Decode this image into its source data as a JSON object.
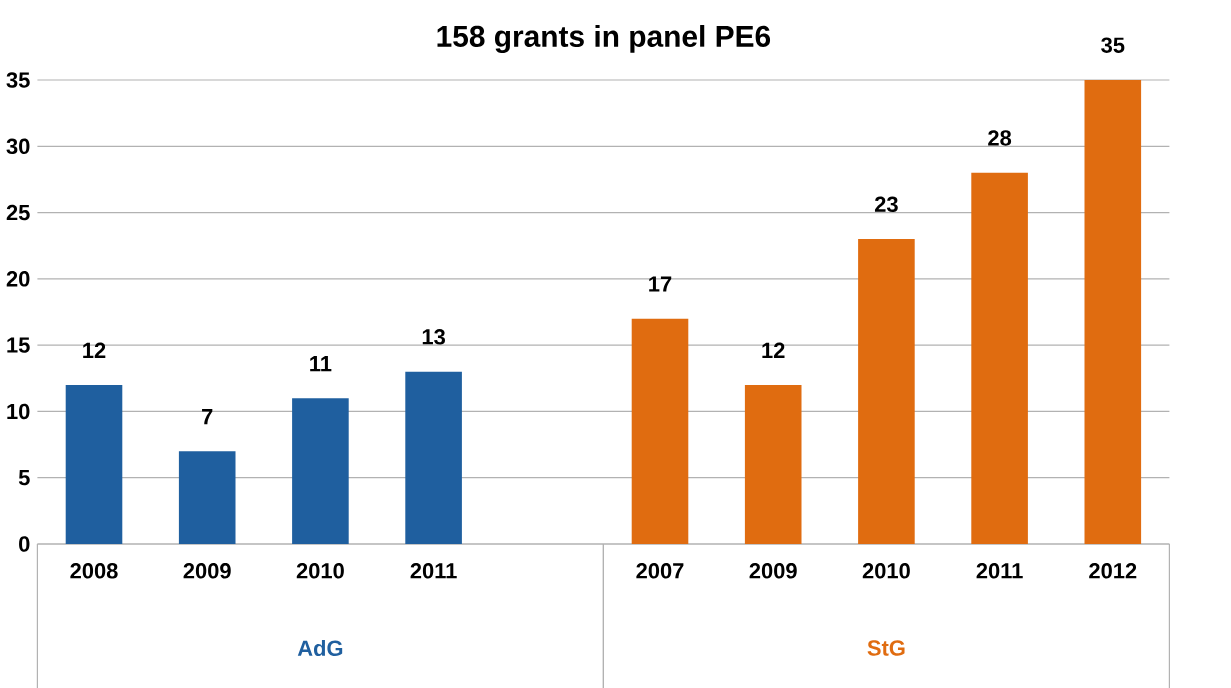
{
  "chart_data": {
    "type": "bar",
    "title": "158 grants in panel PE6",
    "categories": [
      "2008",
      "2009",
      "2010",
      "2011",
      null,
      "2007",
      "2009",
      "2010",
      "2011",
      "2012"
    ],
    "series": [
      {
        "name": "AdG",
        "color": "#1f5f9f",
        "values": [
          12,
          7,
          11,
          13,
          null,
          null,
          null,
          null,
          null,
          null
        ]
      },
      {
        "name": "StG",
        "color": "#e06c10",
        "values": [
          null,
          null,
          null,
          null,
          null,
          17,
          12,
          23,
          28,
          35
        ]
      }
    ],
    "ylim": [
      0,
      35
    ],
    "yticks": [
      0,
      5,
      10,
      15,
      20,
      25,
      30,
      35
    ],
    "grid": "y",
    "data_labels": true
  }
}
